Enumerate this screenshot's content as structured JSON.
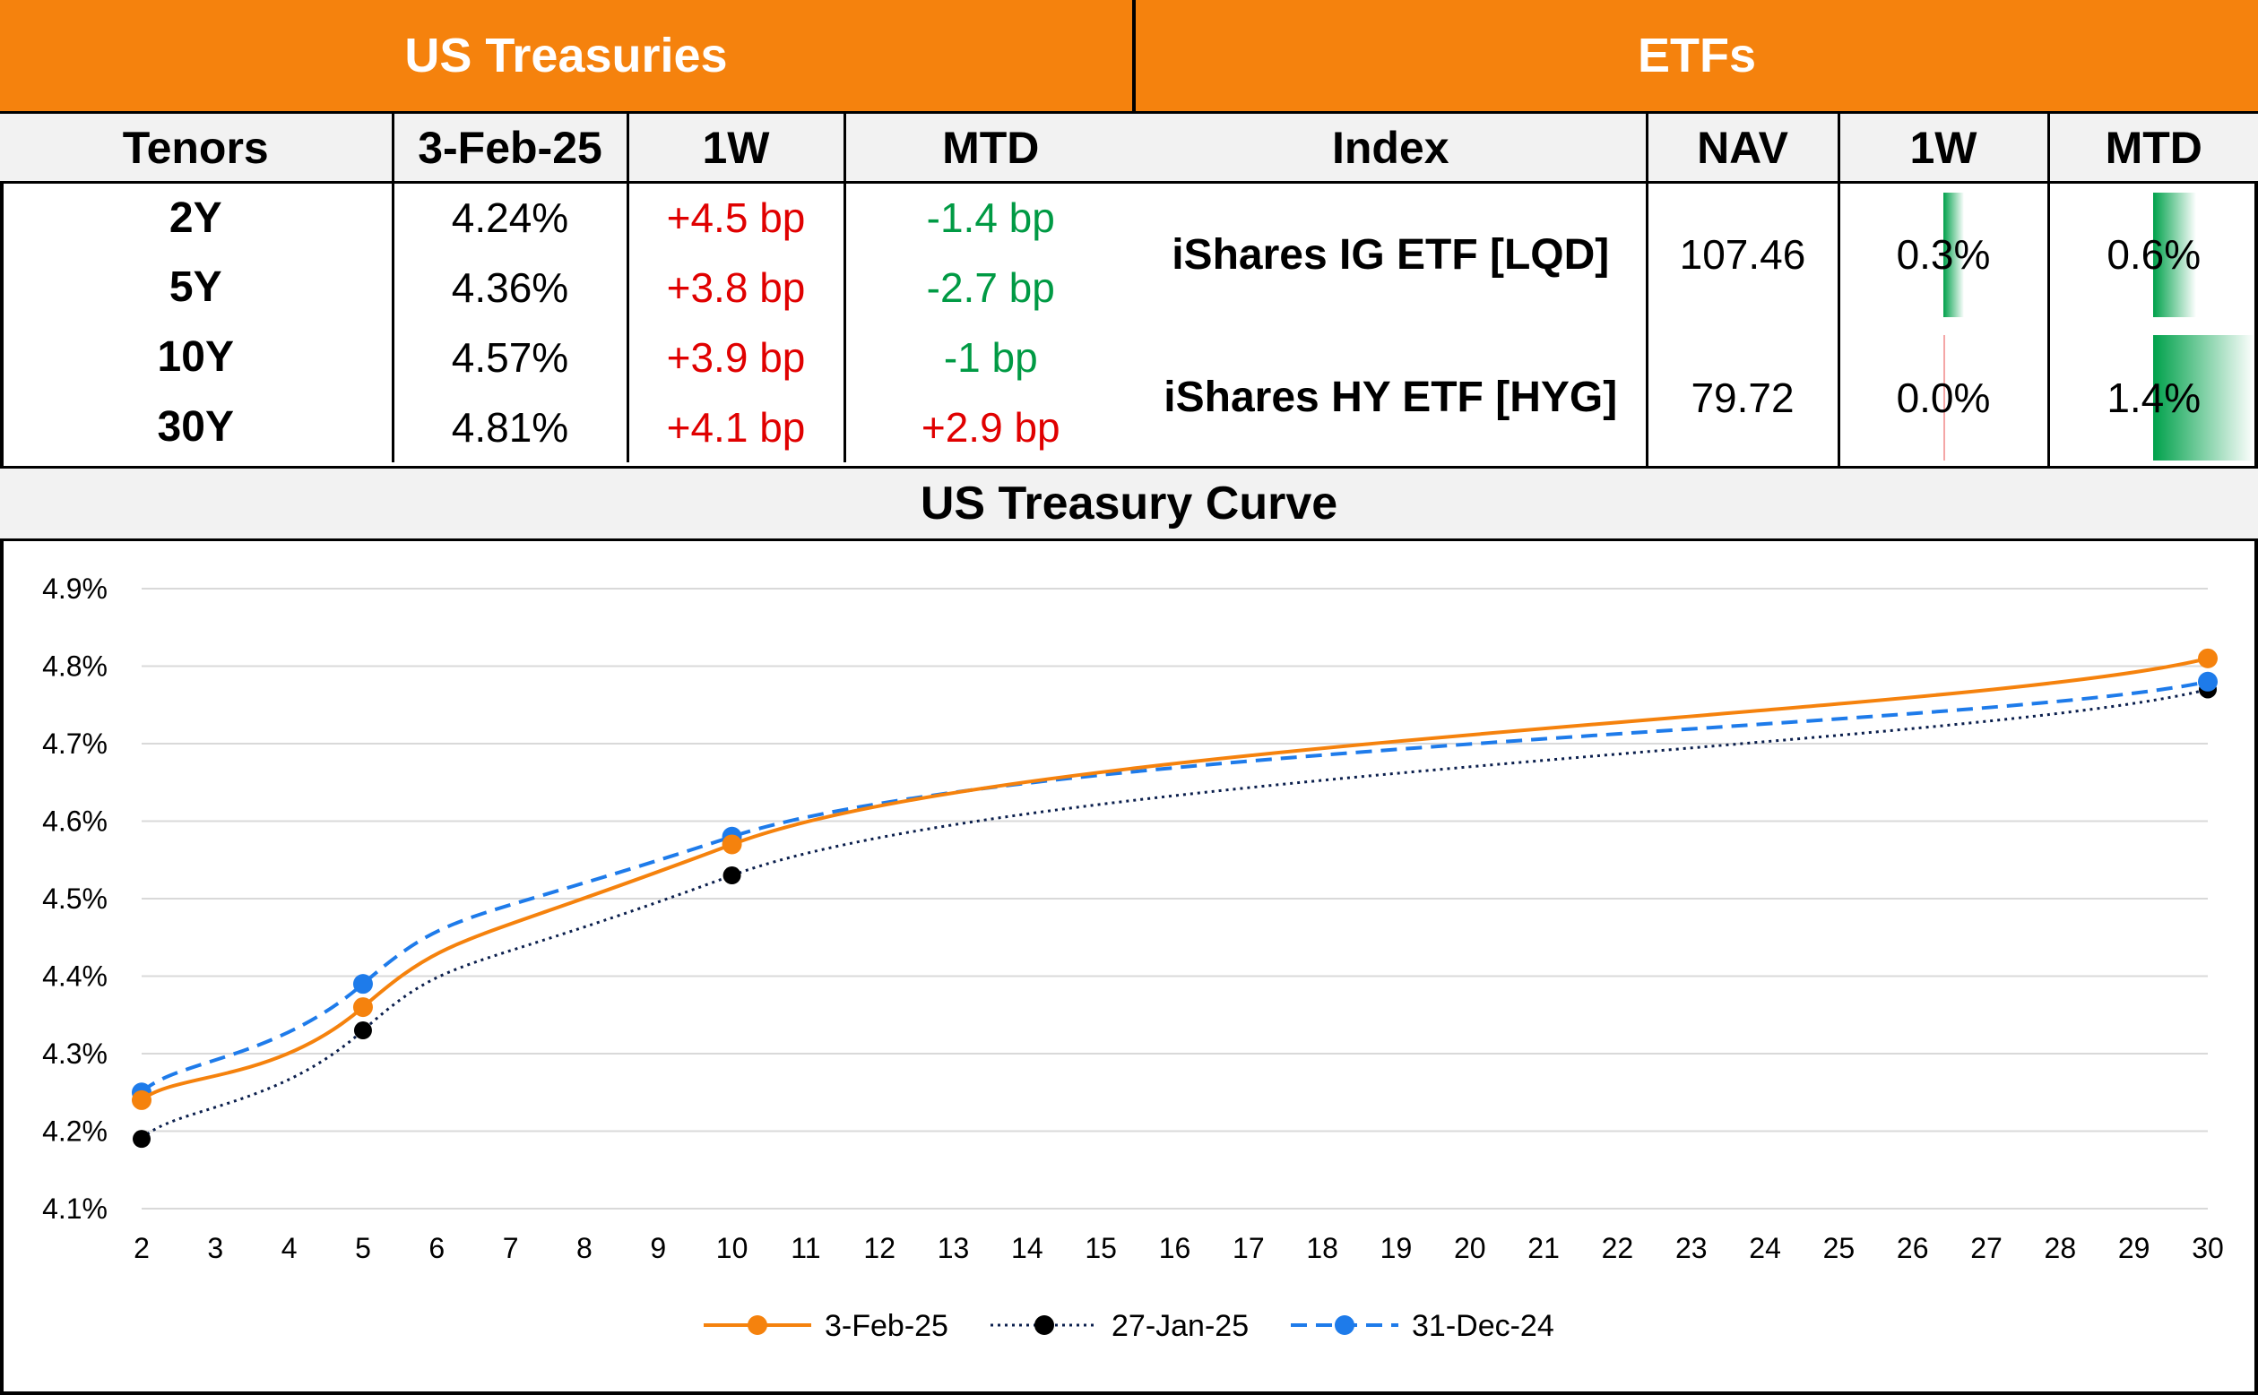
{
  "header": {
    "ust_title": "US Treasuries",
    "etf_title": "ETFs"
  },
  "ust_table": {
    "columns": [
      "Tenors",
      "3-Feb-25",
      "1W",
      "MTD"
    ],
    "rows": [
      {
        "tenor": "2Y",
        "yield": "4.24%",
        "w1": "+4.5 bp",
        "mtd": "-1.4 bp"
      },
      {
        "tenor": "5Y",
        "yield": "4.36%",
        "w1": "+3.8 bp",
        "mtd": "-2.7 bp"
      },
      {
        "tenor": "10Y",
        "yield": "4.57%",
        "w1": "+3.9 bp",
        "mtd": "-1 bp"
      },
      {
        "tenor": "30Y",
        "yield": "4.81%",
        "w1": "+4.1 bp",
        "mtd": "+2.9 bp"
      }
    ]
  },
  "etf_table": {
    "columns": [
      "Index",
      "NAV",
      "1W",
      "MTD"
    ],
    "rows": [
      {
        "index": "iShares IG ETF [LQD]",
        "nav": "107.46",
        "w1": "0.3%",
        "w1_value": 0.3,
        "mtd": "0.6%",
        "mtd_value": 0.6
      },
      {
        "index": "iShares HY ETF [HYG]",
        "nav": "79.72",
        "w1": "0.0%",
        "w1_value": 0.0,
        "mtd": "1.4%",
        "mtd_value": 1.4
      }
    ]
  },
  "chart_title": "US Treasury Curve",
  "colors": {
    "orange": "#F5820D",
    "navy": "#0B1F4D",
    "blue": "#1E7BEA",
    "pos_text": "#E00000",
    "neg_text": "#009A44"
  },
  "chart_data": {
    "type": "line",
    "title": "US Treasury Curve",
    "x_ticks": [
      "2",
      "3",
      "4",
      "5",
      "6",
      "7",
      "8",
      "9",
      "10",
      "11",
      "12",
      "13",
      "14",
      "15",
      "16",
      "17",
      "18",
      "19",
      "20",
      "21",
      "22",
      "23",
      "24",
      "25",
      "26",
      "27",
      "28",
      "29",
      "30"
    ],
    "xlim": [
      2,
      30
    ],
    "ylim": [
      4.1,
      4.9
    ],
    "y_ticks": [
      "4.1%",
      "4.2%",
      "4.3%",
      "4.4%",
      "4.5%",
      "4.6%",
      "4.7%",
      "4.8%",
      "4.9%"
    ],
    "grid": true,
    "legend": "bottom",
    "series": [
      {
        "name": "3-Feb-25",
        "x": [
          2,
          5,
          10,
          30
        ],
        "y": [
          4.24,
          4.36,
          4.57,
          4.81
        ],
        "style": "solid",
        "color": "#F5820D"
      },
      {
        "name": "27-Jan-25",
        "x": [
          2,
          5,
          10,
          30
        ],
        "y": [
          4.19,
          4.33,
          4.53,
          4.77
        ],
        "style": "dotted",
        "color": "#0B1F4D"
      },
      {
        "name": "31-Dec-24",
        "x": [
          2,
          5,
          10,
          30
        ],
        "y": [
          4.25,
          4.39,
          4.58,
          4.78
        ],
        "style": "dashed",
        "color": "#1E7BEA"
      }
    ]
  }
}
